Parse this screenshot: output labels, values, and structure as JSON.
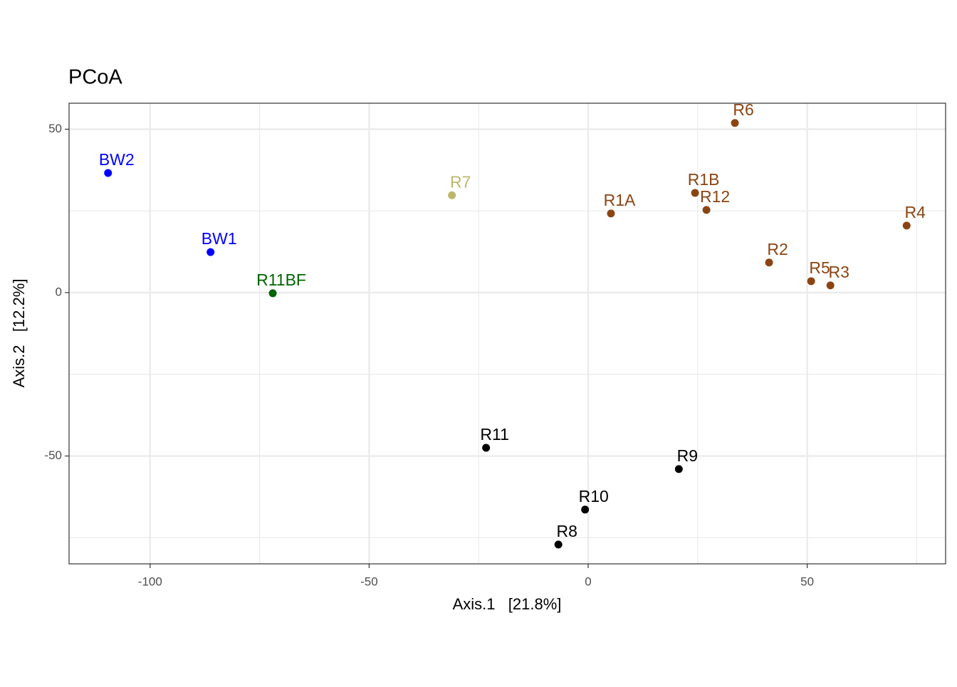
{
  "chart_data": {
    "type": "scatter",
    "title": "PCoA",
    "x_label": "Axis.1   [21.8%]",
    "y_label": "Axis.2   [12.2%]",
    "xlim": [
      -118.5,
      81.6
    ],
    "ylim": [
      -83.0,
      57.95
    ],
    "xticks": [
      -100,
      -50,
      0,
      50
    ],
    "yticks": [
      -50,
      0,
      50
    ],
    "x_minor_grid": [
      -75,
      -25,
      25,
      75
    ],
    "y_minor_grid": [
      -75,
      -25,
      25
    ],
    "grid": true,
    "series": [
      {
        "color": "#0000ff",
        "labels": [
          "BW2",
          "BW1"
        ],
        "x": [
          -109.6,
          -86.2
        ],
        "values": [
          36.6,
          12.4
        ]
      },
      {
        "color": "#006400",
        "labels": [
          "R11BF"
        ],
        "x": [
          -72.0
        ],
        "values": [
          -0.2
        ]
      },
      {
        "color": "#bdb76b",
        "labels": [
          "R7"
        ],
        "x": [
          -31.1
        ],
        "values": [
          29.8
        ]
      },
      {
        "color": "#8b4513",
        "labels": [
          "R1A",
          "R6",
          "R1B",
          "R12",
          "R4",
          "R2",
          "R5",
          "R3"
        ],
        "x": [
          5.2,
          33.5,
          24.4,
          27.0,
          72.7,
          41.3,
          50.9,
          55.3
        ],
        "values": [
          24.2,
          51.9,
          30.5,
          25.3,
          20.5,
          9.2,
          3.5,
          2.2
        ]
      },
      {
        "color": "#000000",
        "labels": [
          "R11",
          "R9",
          "R10",
          "R8"
        ],
        "x": [
          -23.3,
          20.7,
          -0.7,
          -6.8
        ],
        "values": [
          -47.5,
          -54.0,
          -66.4,
          -77.1
        ]
      }
    ]
  }
}
